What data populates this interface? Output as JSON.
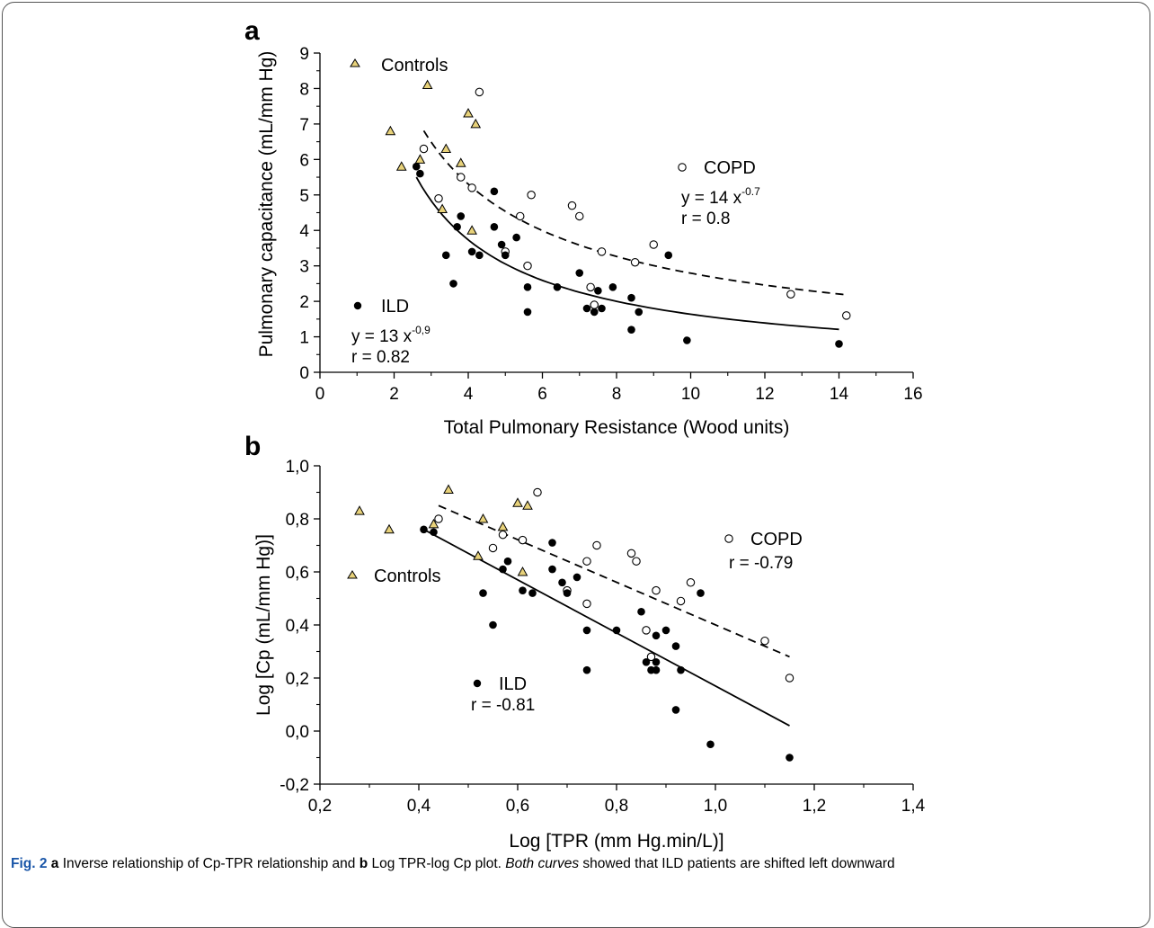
{
  "chart_data": [
    {
      "panel_label": "a",
      "type": "scatter",
      "xlabel": "Total Pulmonary Resistance (Wood units)",
      "ylabel": "Pulmonary capacitance (mL/mm Hg)",
      "xlim": [
        0,
        16
      ],
      "ylim": [
        0,
        9
      ],
      "x_ticks": [
        "0",
        "2",
        "4",
        "6",
        "8",
        "10",
        "12",
        "14",
        "16"
      ],
      "y_ticks": [
        "0",
        "1",
        "2",
        "3",
        "4",
        "5",
        "6",
        "7",
        "8",
        "9"
      ],
      "x_tick_values": [
        0,
        2,
        4,
        6,
        8,
        10,
        12,
        14,
        16
      ],
      "y_tick_values": [
        0,
        1,
        2,
        3,
        4,
        5,
        6,
        7,
        8,
        9
      ],
      "grid": false,
      "series": [
        {
          "name": "Controls",
          "marker": "triangle",
          "color": "#e8d27a",
          "points": [
            [
              1.9,
              6.8
            ],
            [
              2.2,
              5.8
            ],
            [
              2.7,
              6.0
            ],
            [
              2.9,
              8.1
            ],
            [
              3.3,
              4.6
            ],
            [
              3.4,
              6.3
            ],
            [
              3.8,
              5.9
            ],
            [
              4.0,
              7.3
            ],
            [
              4.1,
              4.0
            ],
            [
              4.2,
              7.0
            ]
          ]
        },
        {
          "name": "COPD",
          "marker": "open-circle",
          "color": "#ffffff",
          "points": [
            [
              2.8,
              6.3
            ],
            [
              3.2,
              4.9
            ],
            [
              3.8,
              5.5
            ],
            [
              4.1,
              5.2
            ],
            [
              4.3,
              7.9
            ],
            [
              5.0,
              3.4
            ],
            [
              5.4,
              4.4
            ],
            [
              5.6,
              3.0
            ],
            [
              5.7,
              5.0
            ],
            [
              6.8,
              4.7
            ],
            [
              7.0,
              4.4
            ],
            [
              7.3,
              2.4
            ],
            [
              7.4,
              1.9
            ],
            [
              7.6,
              3.4
            ],
            [
              8.5,
              3.1
            ],
            [
              9.0,
              3.6
            ],
            [
              12.7,
              2.2
            ],
            [
              14.2,
              1.6
            ]
          ]
        },
        {
          "name": "ILD",
          "marker": "filled-circle",
          "color": "#000000",
          "points": [
            [
              2.6,
              5.8
            ],
            [
              2.7,
              5.6
            ],
            [
              3.4,
              3.3
            ],
            [
              3.6,
              2.5
            ],
            [
              3.7,
              4.1
            ],
            [
              3.8,
              4.4
            ],
            [
              4.1,
              3.4
            ],
            [
              4.3,
              3.3
            ],
            [
              4.7,
              5.1
            ],
            [
              4.7,
              4.1
            ],
            [
              4.9,
              3.6
            ],
            [
              5.0,
              3.3
            ],
            [
              5.3,
              3.8
            ],
            [
              5.6,
              2.4
            ],
            [
              5.6,
              1.7
            ],
            [
              6.4,
              2.4
            ],
            [
              7.0,
              2.8
            ],
            [
              7.2,
              1.8
            ],
            [
              7.4,
              1.7
            ],
            [
              7.5,
              2.3
            ],
            [
              7.6,
              1.8
            ],
            [
              7.9,
              2.4
            ],
            [
              8.4,
              2.1
            ],
            [
              8.4,
              1.2
            ],
            [
              8.6,
              1.7
            ],
            [
              9.4,
              3.3
            ],
            [
              9.9,
              0.9
            ],
            [
              14.0,
              0.8
            ]
          ]
        }
      ],
      "fits": [
        {
          "series": "COPD",
          "form": "power",
          "a": 14,
          "b": -0.7,
          "x_range": [
            2.8,
            14.2
          ],
          "style": "dashed"
        },
        {
          "series": "ILD",
          "form": "power",
          "a": 13,
          "b": -0.9,
          "x_range": [
            2.6,
            14.0
          ],
          "style": "solid"
        }
      ],
      "annotations": {
        "controls_label": "Controls",
        "copd_label": "COPD",
        "copd_eq_base": "y = 14 x",
        "copd_eq_exp": "-0.7",
        "copd_r": "r = 0.8",
        "ild_label": "ILD",
        "ild_eq_base": "y = 13 x",
        "ild_eq_exp": "-0,9",
        "ild_r": "r = 0.82"
      }
    },
    {
      "panel_label": "b",
      "type": "scatter",
      "xlabel": "Log [TPR (mm Hg.min/L)]",
      "ylabel": "Log [Cp (mL/mm Hg)]",
      "xlim": [
        0.2,
        1.4
      ],
      "ylim": [
        -0.2,
        1.0
      ],
      "x_ticks": [
        "0,2",
        "0,4",
        "0,6",
        "0,8",
        "1,0",
        "1,2",
        "1,4"
      ],
      "y_ticks": [
        "-0,2",
        "0,0",
        "0,2",
        "0,4",
        "0,6",
        "0,8",
        "1,0"
      ],
      "x_tick_values": [
        0.2,
        0.4,
        0.6,
        0.8,
        1.0,
        1.2,
        1.4
      ],
      "y_tick_values": [
        -0.2,
        0.0,
        0.2,
        0.4,
        0.6,
        0.8,
        1.0
      ],
      "grid": false,
      "series": [
        {
          "name": "Controls",
          "marker": "triangle",
          "color": "#e8d27a",
          "points": [
            [
              0.28,
              0.83
            ],
            [
              0.34,
              0.76
            ],
            [
              0.43,
              0.78
            ],
            [
              0.46,
              0.91
            ],
            [
              0.52,
              0.66
            ],
            [
              0.53,
              0.8
            ],
            [
              0.57,
              0.77
            ],
            [
              0.6,
              0.86
            ],
            [
              0.61,
              0.6
            ],
            [
              0.62,
              0.85
            ]
          ]
        },
        {
          "name": "COPD",
          "marker": "open-circle",
          "color": "#ffffff",
          "points": [
            [
              0.44,
              0.8
            ],
            [
              0.55,
              0.69
            ],
            [
              0.57,
              0.74
            ],
            [
              0.61,
              0.72
            ],
            [
              0.64,
              0.9
            ],
            [
              0.7,
              0.53
            ],
            [
              0.74,
              0.64
            ],
            [
              0.74,
              0.48
            ],
            [
              0.76,
              0.7
            ],
            [
              0.83,
              0.67
            ],
            [
              0.84,
              0.64
            ],
            [
              0.86,
              0.38
            ],
            [
              0.87,
              0.28
            ],
            [
              0.88,
              0.53
            ],
            [
              0.93,
              0.49
            ],
            [
              0.95,
              0.56
            ],
            [
              1.1,
              0.34
            ],
            [
              1.15,
              0.2
            ]
          ]
        },
        {
          "name": "ILD",
          "marker": "filled-circle",
          "color": "#000000",
          "points": [
            [
              0.41,
              0.76
            ],
            [
              0.43,
              0.75
            ],
            [
              0.53,
              0.52
            ],
            [
              0.55,
              0.4
            ],
            [
              0.57,
              0.61
            ],
            [
              0.58,
              0.64
            ],
            [
              0.61,
              0.53
            ],
            [
              0.63,
              0.52
            ],
            [
              0.67,
              0.71
            ],
            [
              0.67,
              0.61
            ],
            [
              0.69,
              0.56
            ],
            [
              0.7,
              0.52
            ],
            [
              0.72,
              0.58
            ],
            [
              0.74,
              0.38
            ],
            [
              0.74,
              0.23
            ],
            [
              0.8,
              0.38
            ],
            [
              0.85,
              0.45
            ],
            [
              0.86,
              0.26
            ],
            [
              0.87,
              0.23
            ],
            [
              0.88,
              0.36
            ],
            [
              0.88,
              0.26
            ],
            [
              0.88,
              0.23
            ],
            [
              0.9,
              0.38
            ],
            [
              0.92,
              0.32
            ],
            [
              0.92,
              0.08
            ],
            [
              0.93,
              0.23
            ],
            [
              0.97,
              0.52
            ],
            [
              0.99,
              -0.05
            ],
            [
              1.15,
              -0.1
            ]
          ]
        }
      ],
      "fits": [
        {
          "series": "COPD",
          "form": "linear",
          "from": [
            0.44,
            0.85
          ],
          "to": [
            1.15,
            0.28
          ],
          "style": "dashed"
        },
        {
          "series": "ILD",
          "form": "linear",
          "from": [
            0.41,
            0.76
          ],
          "to": [
            1.15,
            0.02
          ],
          "style": "solid"
        }
      ],
      "annotations": {
        "controls_label": "Controls",
        "copd_label": "COPD",
        "copd_r": "r = -0.79",
        "ild_label": "ILD",
        "ild_r": "r = -0.81"
      }
    }
  ],
  "caption": {
    "fig_label": "Fig. 2",
    "a": "a",
    "t1": " Inverse relationship of Cp-TPR relationship and ",
    "b": "b",
    "t2": " Log TPR-log Cp plot. ",
    "t3": "Both curves",
    "t4": " showed that ILD patients are shifted left downward"
  },
  "colors": {
    "control_fill": "#e8d27a",
    "marker_stroke": "#000000",
    "frame": "#555555",
    "fig_label": "#1a56a8"
  }
}
